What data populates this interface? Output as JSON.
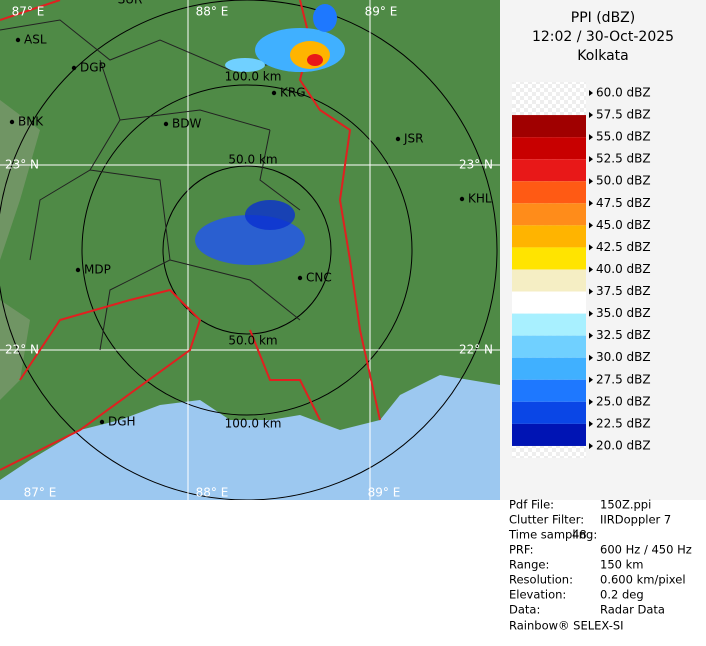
{
  "header": {
    "product": "PPI (dBZ)",
    "datetime": "12:02 / 30-Oct-2025",
    "station": "Kolkata"
  },
  "legend": [
    {
      "label": "60.0 dBZ"
    },
    {
      "label": "57.5 dBZ",
      "color": "#a00000"
    },
    {
      "label": "55.0 dBZ",
      "color": "#c80000"
    },
    {
      "label": "52.5 dBZ",
      "color": "#e81818"
    },
    {
      "label": "50.0 dBZ",
      "color": "#ff5a14"
    },
    {
      "label": "47.5 dBZ",
      "color": "#ff8c1a"
    },
    {
      "label": "45.0 dBZ",
      "color": "#ffb400"
    },
    {
      "label": "42.5 dBZ",
      "color": "#ffe400"
    },
    {
      "label": "40.0 dBZ",
      "color": "#f5eec4"
    },
    {
      "label": "37.5 dBZ",
      "color": "#ffffff"
    },
    {
      "label": "35.0 dBZ",
      "color": "#a8f0ff"
    },
    {
      "label": "32.5 dBZ",
      "color": "#70d0ff"
    },
    {
      "label": "30.0 dBZ",
      "color": "#40b0ff"
    },
    {
      "label": "27.5 dBZ",
      "color": "#1e78ff"
    },
    {
      "label": "25.0 dBZ",
      "color": "#0a46e6"
    },
    {
      "label": "22.5 dBZ",
      "color": "#0014b4"
    },
    {
      "label": "20.0 dBZ"
    }
  ],
  "info": [
    [
      "Pdf File:",
      "150Z.ppi"
    ],
    [
      "Clutter Filter:",
      "IIRDoppler 7"
    ],
    [
      "Time sampling:",
      "48"
    ],
    [
      "PRF:",
      "600 Hz / 450 Hz"
    ],
    [
      "Range:",
      "150 km"
    ],
    [
      "Resolution:",
      "0.600 km/pixel"
    ],
    [
      "Elevation:",
      "0.2 deg"
    ],
    [
      "Data:",
      "Radar Data"
    ]
  ],
  "footer": "Rainbow® SELEX-SI",
  "grid_labels": [
    "87° E",
    "88° E",
    "89° E",
    "SUR",
    "23° N",
    "22° N",
    "23° N",
    "22° N",
    "87° E",
    "88° E",
    "89° E"
  ],
  "cities": [
    "ASL",
    "DGP",
    "BNK",
    "BDW",
    "KRG",
    "JSR",
    "KHL",
    "MDP",
    "CNC",
    "DGH"
  ],
  "ring_labels": [
    "100.0 km",
    "50.0 km",
    "50.0 km",
    "100.0 km"
  ]
}
